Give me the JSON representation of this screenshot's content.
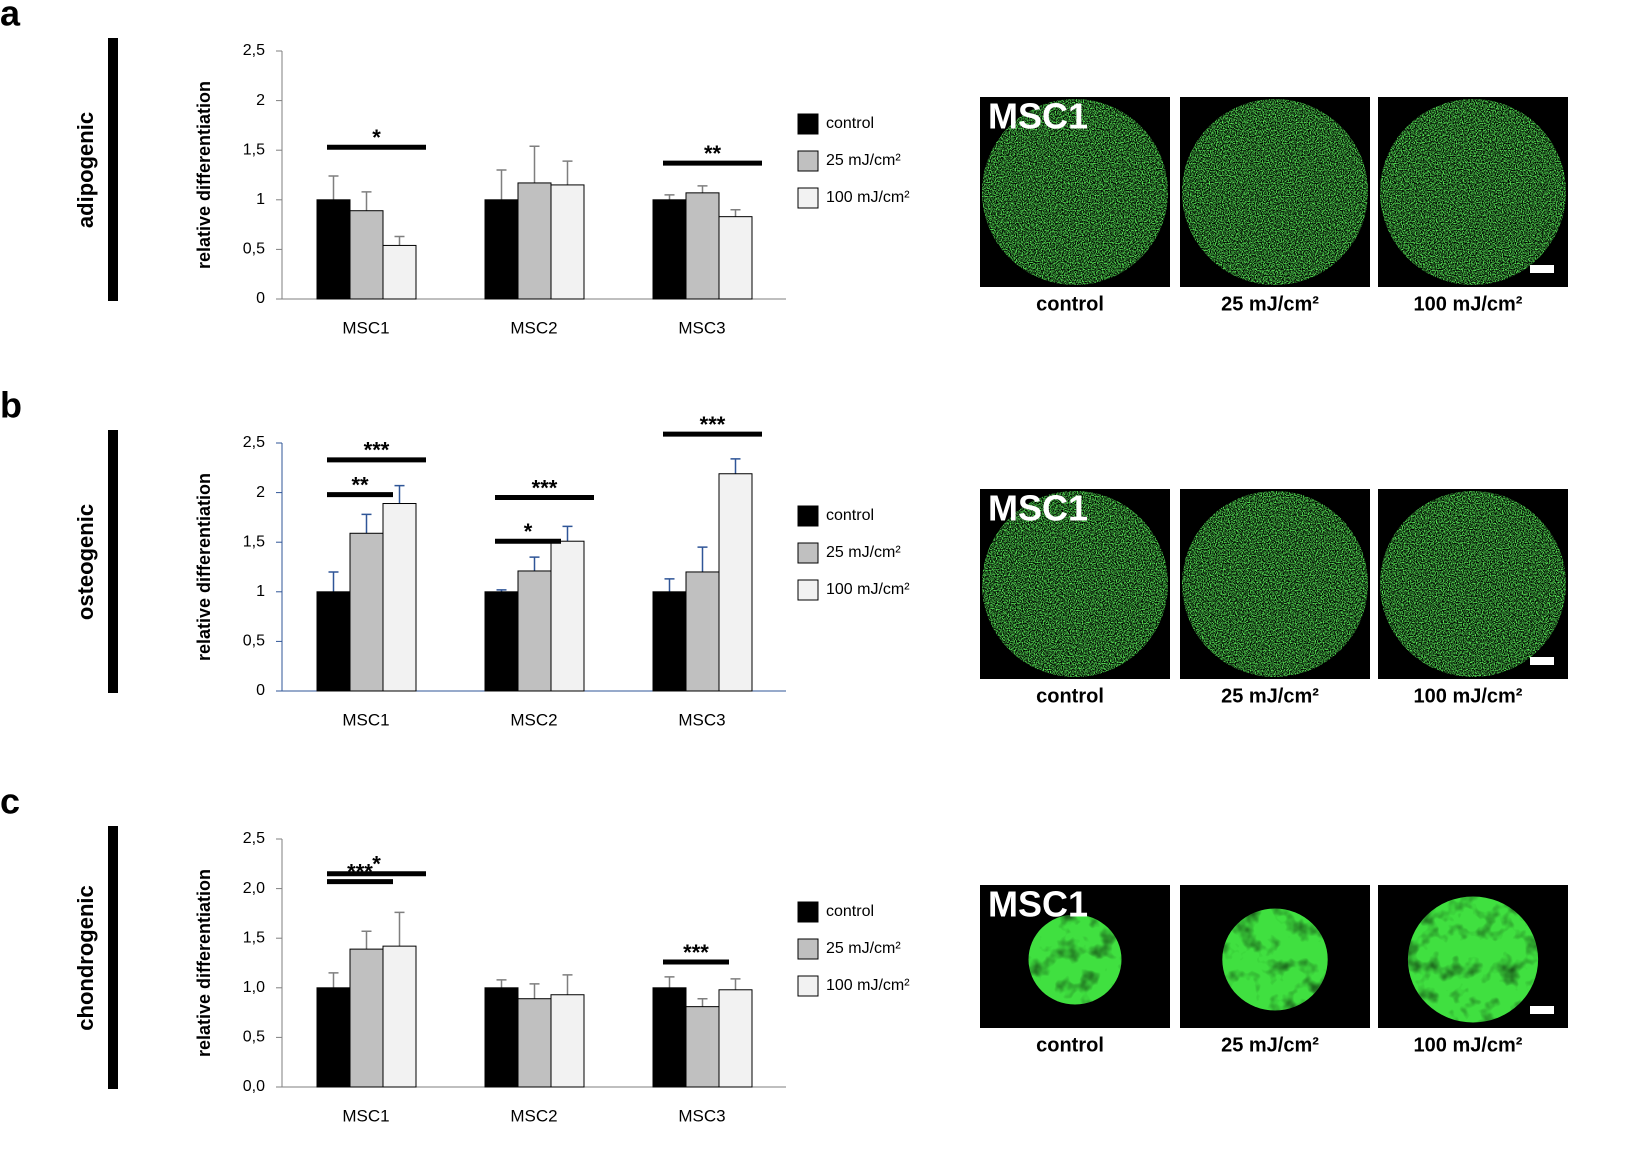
{
  "panels": [
    {
      "letter": "a",
      "section": "adipogenic",
      "image_badge": "MSC1",
      "image_captions": [
        "control",
        "25 mJ/cm²",
        "100 mJ/cm²"
      ]
    },
    {
      "letter": "b",
      "section": "osteogenic",
      "image_badge": "MSC1",
      "image_captions": [
        "control",
        "25 mJ/cm²",
        "100 mJ/cm²"
      ]
    },
    {
      "letter": "c",
      "section": "chondrogenic",
      "image_badge": "MSC1",
      "image_captions": [
        "control",
        "25 mJ/cm²",
        "100 mJ/cm²"
      ]
    }
  ],
  "chart_data": [
    {
      "type": "bar",
      "y_label": "relative differentiation",
      "categories": [
        "MSC1",
        "MSC2",
        "MSC3"
      ],
      "axis_color": "#7f7f7f",
      "series": [
        {
          "name": "control",
          "color": "#000000",
          "values": [
            1,
            1,
            1
          ],
          "errors": [
            0.24,
            0.3,
            0.05
          ]
        },
        {
          "name": "25 mJ/cm²",
          "color": "#c0c0c0",
          "values": [
            0.89,
            1.17,
            1.07
          ],
          "errors": [
            0.19,
            0.37,
            0.07
          ]
        },
        {
          "name": "100 mJ/cm²",
          "color": "#f2f2f2",
          "values": [
            0.54,
            1.15,
            0.83
          ],
          "errors": [
            0.09,
            0.24,
            0.07
          ]
        }
      ],
      "ylim": [
        0,
        2.5
      ],
      "yticks": [
        0,
        {
          "value": 0.5,
          "label": "0,5"
        },
        1,
        {
          "value": 1.5,
          "label": "1,5"
        },
        2,
        {
          "value": 2.5,
          "label": "2,5"
        }
      ],
      "annotations": [
        {
          "text": "*",
          "category": 0,
          "series": [
            0,
            2
          ],
          "y": 1.53
        },
        {
          "text": "**",
          "category": 2,
          "series": [
            0,
            2
          ],
          "y": 1.37
        }
      ]
    },
    {
      "type": "bar",
      "y_label": "relative differentiation",
      "categories": [
        "MSC1",
        "MSC2",
        "MSC3"
      ],
      "axis_color": "#2f5597",
      "series": [
        {
          "name": "control",
          "color": "#000000",
          "values": [
            1,
            1,
            1
          ],
          "errors": [
            0.2,
            0.02,
            0.13
          ]
        },
        {
          "name": "25 mJ/cm²",
          "color": "#c0c0c0",
          "values": [
            1.59,
            1.21,
            1.2
          ],
          "errors": [
            0.19,
            0.14,
            0.25
          ]
        },
        {
          "name": "100 mJ/cm²",
          "color": "#f2f2f2",
          "values": [
            1.89,
            1.51,
            2.19
          ],
          "errors": [
            0.18,
            0.15,
            0.15
          ]
        }
      ],
      "ylim": [
        0,
        2.5
      ],
      "yticks": [
        0,
        {
          "value": 0.5,
          "label": "0,5"
        },
        1,
        {
          "value": 1.5,
          "label": "1,5"
        },
        2,
        {
          "value": 2.5,
          "label": "2,5"
        }
      ],
      "annotations": [
        {
          "text": "***",
          "category": 0,
          "series": [
            0,
            2
          ],
          "y": 2.33
        },
        {
          "text": "**",
          "category": 0,
          "series": [
            0,
            1
          ],
          "y": 1.98
        },
        {
          "text": "***",
          "category": 1,
          "series": [
            0,
            2
          ],
          "y": 1.95
        },
        {
          "text": "*",
          "category": 1,
          "series": [
            0,
            1
          ],
          "y": 1.51
        },
        {
          "text": "***",
          "category": 2,
          "series": [
            0,
            2
          ],
          "y": 2.59
        }
      ]
    },
    {
      "type": "bar",
      "y_label": "relative differentiation",
      "categories": [
        "MSC1",
        "MSC2",
        "MSC3"
      ],
      "axis_color": "#7f7f7f",
      "series": [
        {
          "name": "control",
          "color": "#000000",
          "values": [
            1,
            1,
            1
          ],
          "errors": [
            0.15,
            0.08,
            0.11
          ]
        },
        {
          "name": "25 mJ/cm²",
          "color": "#c0c0c0",
          "values": [
            1.39,
            0.89,
            0.81
          ],
          "errors": [
            0.18,
            0.15,
            0.08
          ]
        },
        {
          "name": "100 mJ/cm²",
          "color": "#f2f2f2",
          "values": [
            1.42,
            0.93,
            0.98
          ],
          "errors": [
            0.34,
            0.2,
            0.11
          ]
        }
      ],
      "ylim": [
        0,
        2.5
      ],
      "yticks": [
        {
          "value": 0,
          "label": "0,0"
        },
        {
          "value": 0.5,
          "label": "0,5"
        },
        {
          "value": 1,
          "label": "1,0"
        },
        {
          "value": 1.5,
          "label": "1,5"
        },
        {
          "value": 2,
          "label": "2,0"
        },
        {
          "value": 2.5,
          "label": "2,5"
        }
      ],
      "annotations": [
        {
          "text": "*",
          "category": 0,
          "series": [
            0,
            2
          ],
          "y": 2.15
        },
        {
          "text": "***",
          "category": 0,
          "series": [
            0,
            1
          ],
          "y": 2.07
        },
        {
          "text": "***",
          "category": 2,
          "series": [
            0,
            1
          ],
          "y": 1.26
        }
      ]
    }
  ]
}
